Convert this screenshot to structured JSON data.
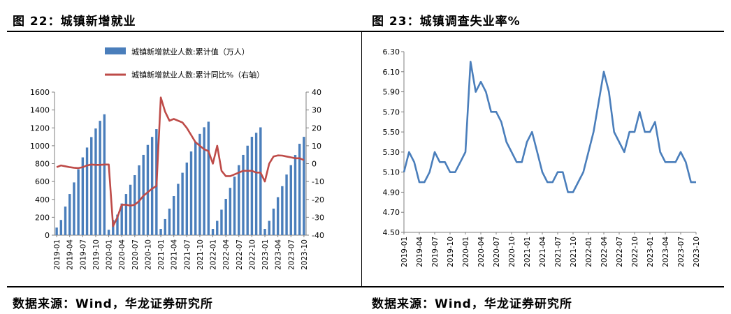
{
  "figures": [
    {
      "title": "图 22：城镇新增就业",
      "source": "数据来源：Wind，华龙证券研究所"
    },
    {
      "title": "图 23：城镇调查失业率%",
      "source": "数据来源：Wind，华龙证券研究所"
    }
  ],
  "chart_data": [
    {
      "type": "bar",
      "months": [
        "2019-01",
        "2019-02",
        "2019-03",
        "2019-04",
        "2019-05",
        "2019-06",
        "2019-07",
        "2019-08",
        "2019-09",
        "2019-10",
        "2019-11",
        "2019-12",
        "2020-01",
        "2020-02",
        "2020-03",
        "2020-04",
        "2020-05",
        "2020-06",
        "2020-07",
        "2020-08",
        "2020-09",
        "2020-10",
        "2020-11",
        "2020-12",
        "2021-01",
        "2021-02",
        "2021-03",
        "2021-04",
        "2021-05",
        "2021-06",
        "2021-07",
        "2021-08",
        "2021-09",
        "2021-10",
        "2021-11",
        "2021-12",
        "2022-01",
        "2022-02",
        "2022-03",
        "2022-04",
        "2022-05",
        "2022-06",
        "2022-07",
        "2022-08",
        "2022-09",
        "2022-10",
        "2022-11",
        "2022-12",
        "2023-01",
        "2023-02",
        "2023-03",
        "2023-04",
        "2023-05",
        "2023-06",
        "2023-07",
        "2023-08",
        "2023-09",
        "2023-10"
      ],
      "tick_labels": [
        "2019-01",
        "2019-04",
        "2019-07",
        "2019-10",
        "2020-01",
        "2020-04",
        "2020-07",
        "2020-10",
        "2021-01",
        "2021-04",
        "2021-07",
        "2021-10",
        "2022-01",
        "2022-04",
        "2022-07",
        "2022-10",
        "2023-01",
        "2023-04",
        "2023-07",
        "2023-10"
      ],
      "series": [
        {
          "name": "城镇新增就业人数:累计值（万人）",
          "axis": "left",
          "color": "#4a7ebb",
          "values": [
            85,
            170,
            320,
            460,
            590,
            737,
            870,
            980,
            1097,
            1193,
            1279,
            1352,
            60,
            170,
            230,
            354,
            460,
            564,
            671,
            781,
            898,
            1009,
            1099,
            1186,
            70,
            180,
            297,
            437,
            574,
            698,
            812,
            936,
            1045,
            1133,
            1207,
            1269,
            70,
            160,
            285,
            406,
            529,
            654,
            783,
            898,
            1001,
            1100,
            1145,
            1206,
            70,
            160,
            297,
            425,
            548,
            678,
            783,
            897,
            1022,
            1100
          ]
        },
        {
          "name": "城镇新增就业人数:累计同比%（右轴）",
          "axis": "right",
          "color": "#be4b48",
          "values": [
            -2,
            -1,
            -1.5,
            -2,
            -2.3,
            -2.5,
            -2,
            -1,
            -0.5,
            -0.7,
            -0.7,
            -0.5,
            -0.5,
            -35,
            -30,
            -23,
            -23,
            -23.5,
            -23,
            -21,
            -18,
            -16,
            -14,
            -12.5,
            37,
            29,
            24,
            25,
            24,
            23,
            20,
            16,
            12,
            10,
            8,
            7,
            0,
            10,
            -4,
            -7,
            -7,
            -6,
            -5,
            -4,
            -4,
            -4,
            -5,
            -5,
            -10,
            0,
            4,
            4.6,
            4.5,
            4,
            3.5,
            3,
            3,
            2
          ]
        }
      ],
      "y_left": {
        "min": 0,
        "max": 1600,
        "ticks": [
          0,
          200,
          400,
          600,
          800,
          1000,
          1200,
          1400,
          1600
        ]
      },
      "y_right": {
        "min": -40,
        "max": 40,
        "ticks": [
          40,
          30,
          20,
          10,
          0,
          -10,
          -20,
          -30,
          -40
        ]
      },
      "legend": "top-center"
    },
    {
      "type": "line",
      "months": [
        "2019-01",
        "2019-02",
        "2019-03",
        "2019-04",
        "2019-05",
        "2019-06",
        "2019-07",
        "2019-08",
        "2019-09",
        "2019-10",
        "2019-11",
        "2019-12",
        "2020-01",
        "2020-02",
        "2020-03",
        "2020-04",
        "2020-05",
        "2020-06",
        "2020-07",
        "2020-08",
        "2020-09",
        "2020-10",
        "2020-11",
        "2020-12",
        "2021-01",
        "2021-02",
        "2021-03",
        "2021-04",
        "2021-05",
        "2021-06",
        "2021-07",
        "2021-08",
        "2021-09",
        "2021-10",
        "2021-11",
        "2021-12",
        "2022-01",
        "2022-02",
        "2022-03",
        "2022-04",
        "2022-05",
        "2022-06",
        "2022-07",
        "2022-08",
        "2022-09",
        "2022-10",
        "2022-11",
        "2022-12",
        "2023-01",
        "2023-02",
        "2023-03",
        "2023-04",
        "2023-05",
        "2023-06",
        "2023-07",
        "2023-08",
        "2023-09",
        "2023-10"
      ],
      "tick_labels": [
        "2019-01",
        "2019-04",
        "2019-07",
        "2019-10",
        "2020-01",
        "2020-04",
        "2020-07",
        "2020-10",
        "2021-01",
        "2021-04",
        "2021-07",
        "2021-10",
        "2022-01",
        "2022-04",
        "2022-07",
        "2022-10",
        "2023-01",
        "2023-04",
        "2023-07",
        "2023-10"
      ],
      "series": [
        {
          "color": "#4a7ebb",
          "values": [
            5.1,
            5.3,
            5.2,
            5.0,
            5.0,
            5.1,
            5.3,
            5.2,
            5.2,
            5.1,
            5.1,
            5.2,
            5.3,
            6.2,
            5.9,
            6.0,
            5.9,
            5.7,
            5.7,
            5.6,
            5.4,
            5.3,
            5.2,
            5.2,
            5.4,
            5.5,
            5.3,
            5.1,
            5.0,
            5.0,
            5.1,
            5.1,
            4.9,
            4.9,
            5.0,
            5.1,
            5.3,
            5.5,
            5.8,
            6.1,
            5.9,
            5.5,
            5.4,
            5.3,
            5.5,
            5.5,
            5.7,
            5.5,
            5.5,
            5.6,
            5.3,
            5.2,
            5.2,
            5.2,
            5.3,
            5.2,
            5.0,
            5.0
          ]
        }
      ],
      "y": {
        "min": 4.5,
        "max": 6.3,
        "ticks": [
          "6.30",
          "6.10",
          "5.90",
          "5.70",
          "5.50",
          "5.30",
          "5.10",
          "4.90",
          "4.70",
          "4.50"
        ]
      }
    }
  ]
}
